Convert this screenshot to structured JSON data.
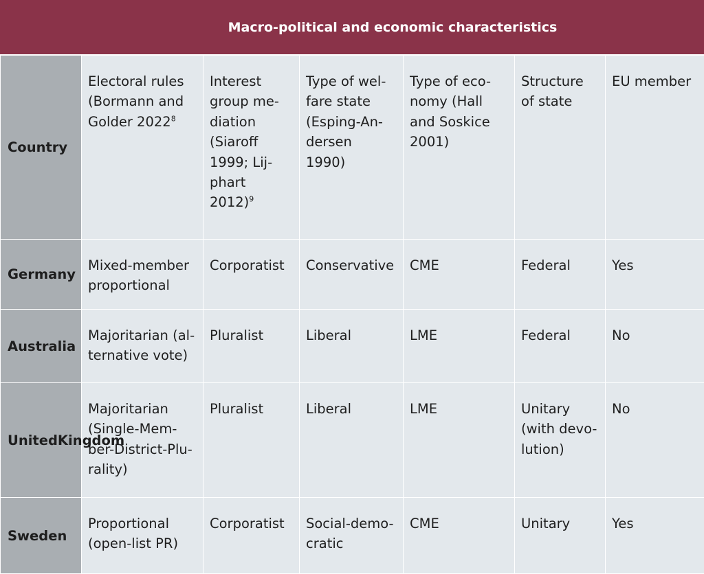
{
  "header": {
    "title": "Macro-political and economic characteristics"
  },
  "columns": {
    "country": "Country",
    "electoral_rules": [
      "Electoral rules",
      "(Bormann and",
      "Golder 2022"
    ],
    "electoral_rules_note": "8",
    "interest_group": [
      "Interest",
      "group me-",
      "diation",
      "(Siaroff",
      "1999; Lij-",
      "phart",
      "2012)"
    ],
    "interest_group_note": "9",
    "welfare": [
      "Type of wel-",
      "fare state",
      "(Esping-An-",
      "dersen",
      "1990)"
    ],
    "economy": [
      "Type of eco-",
      "nomy (Hall",
      "and Soskice",
      "2001)"
    ],
    "structure": [
      "Structure",
      "of state"
    ],
    "eu": [
      "EU member"
    ]
  },
  "rows": [
    {
      "country": [
        "Germany"
      ],
      "electoral_rules": [
        "Mixed-member",
        "proportional"
      ],
      "interest_group": [
        "Corporatist"
      ],
      "welfare": [
        "Conservative"
      ],
      "economy": [
        "CME"
      ],
      "structure": [
        "Federal"
      ],
      "eu": [
        "Yes"
      ]
    },
    {
      "country": [
        "Australia"
      ],
      "electoral_rules": [
        "Majoritarian (al-",
        "ternative vote)"
      ],
      "interest_group": [
        "Pluralist"
      ],
      "welfare": [
        "Liberal"
      ],
      "economy": [
        "LME"
      ],
      "structure": [
        "Federal"
      ],
      "eu": [
        "No"
      ]
    },
    {
      "country": [
        "United",
        "Kingdom"
      ],
      "electoral_rules": [
        "Majoritarian",
        "(Single-Mem-",
        "ber-District-Plu-",
        "rality)"
      ],
      "interest_group": [
        "Pluralist"
      ],
      "welfare": [
        "Liberal"
      ],
      "economy": [
        "LME"
      ],
      "structure": [
        "Unitary",
        "(with devo-",
        "lution)"
      ],
      "eu": [
        "No"
      ]
    },
    {
      "country": [
        "Sweden"
      ],
      "electoral_rules": [
        "Proportional",
        "(open-list PR)"
      ],
      "interest_group": [
        "Corporatist"
      ],
      "welfare": [
        "Social-demo-",
        "cratic"
      ],
      "economy": [
        "CME"
      ],
      "structure": [
        "Unitary"
      ],
      "eu": [
        "Yes"
      ]
    }
  ]
}
